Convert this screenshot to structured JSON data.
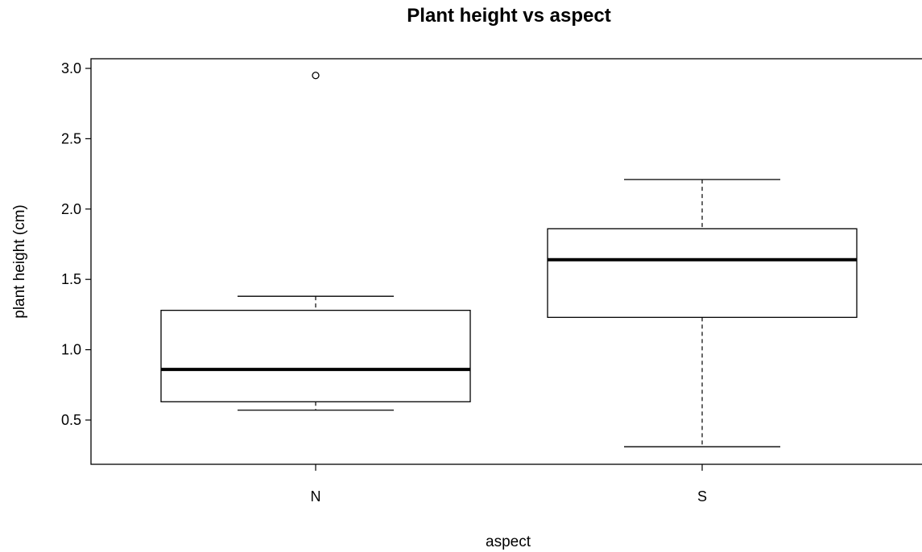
{
  "chart_data": {
    "type": "box",
    "title": "Plant height vs aspect",
    "xlabel": "aspect",
    "ylabel": "plant height (cm)",
    "ylim": [
      0.2,
      3.07
    ],
    "yticks": [
      "0.5",
      "1.0",
      "1.5",
      "2.0",
      "2.5",
      "3.0"
    ],
    "categories": [
      "N",
      "S"
    ],
    "boxes": [
      {
        "category": "N",
        "whisker_low": 0.57,
        "q1": 0.63,
        "median": 0.86,
        "q3": 1.28,
        "whisker_high": 1.38,
        "outliers": [
          2.95
        ]
      },
      {
        "category": "S",
        "whisker_low": 0.31,
        "q1": 1.23,
        "median": 1.64,
        "q3": 1.86,
        "whisker_high": 2.21,
        "outliers": []
      }
    ],
    "grid": false
  }
}
